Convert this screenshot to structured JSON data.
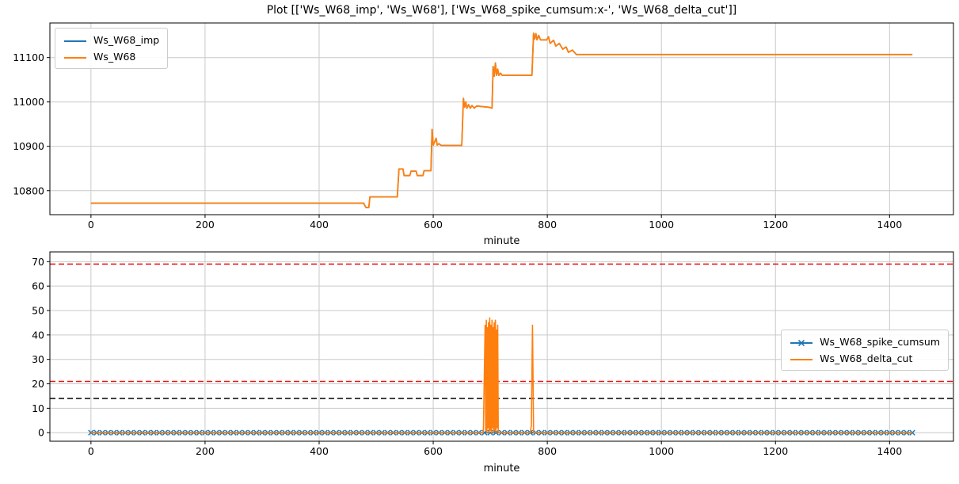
{
  "figure": {
    "title": "Plot [['Ws_W68_imp', 'Ws_W68'], ['Ws_W68_spike_cumsum:x-', 'Ws_W68_delta_cut']]"
  },
  "style": {
    "background": "#ffffff",
    "grid_color": "#c9c9c9",
    "spine_color": "#000000",
    "blue": "#1f77b4",
    "orange": "#ff7f0e",
    "red_threshold": "#ee1111",
    "black_threshold": "#000000"
  },
  "chart_data": [
    {
      "type": "line",
      "xlabel": "minute",
      "ylabel": "",
      "xlim": [
        -72,
        1512
      ],
      "ylim": [
        10746,
        11178
      ],
      "xticks": [
        0,
        200,
        400,
        600,
        800,
        1000,
        1200,
        1400
      ],
      "yticks": [
        10800,
        10900,
        11000,
        11100
      ],
      "grid": true,
      "legend_position": "upper left",
      "series": [
        {
          "name": "Ws_W68_imp",
          "color": "#1f77b4",
          "line_width": 1.6,
          "points": [
            [
              0,
              10772
            ],
            [
              478,
              10772
            ],
            [
              482,
              10762
            ],
            [
              487,
              10762
            ],
            [
              489,
              10786
            ],
            [
              537,
              10786
            ],
            [
              540,
              10849
            ],
            [
              547,
              10849
            ],
            [
              549,
              10834
            ],
            [
              559,
              10834
            ],
            [
              561,
              10844
            ],
            [
              570,
              10844
            ],
            [
              572,
              10834
            ],
            [
              582,
              10834
            ],
            [
              584,
              10845
            ],
            [
              596,
              10845
            ],
            [
              598,
              10938
            ],
            [
              600,
              10903
            ],
            [
              605,
              10918
            ],
            [
              607,
              10903
            ],
            [
              610,
              10906
            ],
            [
              614,
              10902
            ],
            [
              650,
              10902
            ],
            [
              653,
              11008
            ],
            [
              655,
              10988
            ],
            [
              657,
              11000
            ],
            [
              659,
              10986
            ],
            [
              662,
              10994
            ],
            [
              665,
              10986
            ],
            [
              668,
              10992
            ],
            [
              672,
              10986
            ],
            [
              676,
              10991
            ],
            [
              698,
              10988
            ],
            [
              703,
              10986
            ],
            [
              705,
              11080
            ],
            [
              707,
              11058
            ],
            [
              709,
              11088
            ],
            [
              711,
              11060
            ],
            [
              713,
              11074
            ],
            [
              715,
              11060
            ],
            [
              718,
              11065
            ],
            [
              721,
              11060
            ],
            [
              773,
              11060
            ],
            [
              776,
              11155
            ],
            [
              778,
              11142
            ],
            [
              780,
              11154
            ],
            [
              782,
              11140
            ],
            [
              785,
              11150
            ],
            [
              788,
              11140
            ],
            [
              799,
              11140
            ],
            [
              802,
              11147
            ],
            [
              805,
              11132
            ],
            [
              811,
              11139
            ],
            [
              815,
              11126
            ],
            [
              821,
              11132
            ],
            [
              827,
              11119
            ],
            [
              833,
              11124
            ],
            [
              837,
              11112
            ],
            [
              844,
              11117
            ],
            [
              851,
              11107
            ],
            [
              1440,
              11107
            ]
          ]
        },
        {
          "name": "Ws_W68",
          "color": "#ff7f0e",
          "line_width": 1.8,
          "points": [
            [
              0,
              10772
            ],
            [
              478,
              10772
            ],
            [
              482,
              10762
            ],
            [
              487,
              10762
            ],
            [
              489,
              10786
            ],
            [
              537,
              10786
            ],
            [
              540,
              10849
            ],
            [
              547,
              10849
            ],
            [
              549,
              10834
            ],
            [
              559,
              10834
            ],
            [
              561,
              10844
            ],
            [
              570,
              10844
            ],
            [
              572,
              10834
            ],
            [
              582,
              10834
            ],
            [
              584,
              10845
            ],
            [
              596,
              10845
            ],
            [
              598,
              10938
            ],
            [
              600,
              10903
            ],
            [
              605,
              10918
            ],
            [
              607,
              10903
            ],
            [
              610,
              10906
            ],
            [
              614,
              10902
            ],
            [
              650,
              10902
            ],
            [
              653,
              11008
            ],
            [
              655,
              10988
            ],
            [
              657,
              11000
            ],
            [
              659,
              10986
            ],
            [
              662,
              10994
            ],
            [
              665,
              10986
            ],
            [
              668,
              10992
            ],
            [
              672,
              10986
            ],
            [
              676,
              10991
            ],
            [
              698,
              10988
            ],
            [
              703,
              10986
            ],
            [
              705,
              11080
            ],
            [
              707,
              11058
            ],
            [
              709,
              11088
            ],
            [
              711,
              11060
            ],
            [
              713,
              11074
            ],
            [
              715,
              11060
            ],
            [
              718,
              11065
            ],
            [
              721,
              11060
            ],
            [
              773,
              11060
            ],
            [
              776,
              11155
            ],
            [
              778,
              11142
            ],
            [
              780,
              11154
            ],
            [
              782,
              11140
            ],
            [
              785,
              11150
            ],
            [
              788,
              11140
            ],
            [
              799,
              11140
            ],
            [
              802,
              11147
            ],
            [
              805,
              11132
            ],
            [
              811,
              11139
            ],
            [
              815,
              11126
            ],
            [
              821,
              11132
            ],
            [
              827,
              11119
            ],
            [
              833,
              11124
            ],
            [
              837,
              11112
            ],
            [
              844,
              11117
            ],
            [
              851,
              11107
            ],
            [
              1440,
              11107
            ]
          ]
        }
      ]
    },
    {
      "type": "line",
      "xlabel": "minute",
      "ylabel": "",
      "xlim": [
        -72,
        1512
      ],
      "ylim": [
        -3.5,
        74
      ],
      "xticks": [
        0,
        200,
        400,
        600,
        800,
        1000,
        1200,
        1400
      ],
      "yticks": [
        0,
        10,
        20,
        30,
        40,
        50,
        60,
        70
      ],
      "grid": true,
      "legend_position": "center right",
      "hlines": [
        {
          "y": 69,
          "color": "#ee1111",
          "style": "dashed"
        },
        {
          "y": 21,
          "color": "#ee1111",
          "style": "dashed"
        },
        {
          "y": 14,
          "color": "#000000",
          "style": "dashed"
        }
      ],
      "series": [
        {
          "name": "Ws_W68_spike_cumsum",
          "color": "#1f77b4",
          "line_width": 2,
          "marker": "x",
          "marker_step": 10,
          "points": [
            [
              0,
              0
            ],
            [
              1440,
              0
            ]
          ]
        },
        {
          "name": "Ws_W68_delta_cut",
          "color": "#ff7f0e",
          "line_width": 1.6,
          "points": [
            [
              0,
              0
            ],
            [
              688,
              0
            ],
            [
              691,
              44
            ],
            [
              692,
              1
            ],
            [
              693,
              46
            ],
            [
              694,
              0
            ],
            [
              695,
              43
            ],
            [
              696,
              2
            ],
            [
              697,
              45
            ],
            [
              698,
              0
            ],
            [
              699,
              47
            ],
            [
              700,
              1
            ],
            [
              701,
              44
            ],
            [
              702,
              0
            ],
            [
              703,
              46
            ],
            [
              704,
              2
            ],
            [
              705,
              43
            ],
            [
              706,
              0
            ],
            [
              707,
              45
            ],
            [
              708,
              1
            ],
            [
              709,
              46
            ],
            [
              710,
              0
            ],
            [
              711,
              42
            ],
            [
              712,
              2
            ],
            [
              713,
              44
            ],
            [
              714,
              0
            ],
            [
              716,
              0
            ],
            [
              770,
              0
            ],
            [
              772,
              3
            ],
            [
              774,
              44
            ],
            [
              776,
              0
            ],
            [
              1440,
              0
            ]
          ]
        }
      ]
    }
  ]
}
